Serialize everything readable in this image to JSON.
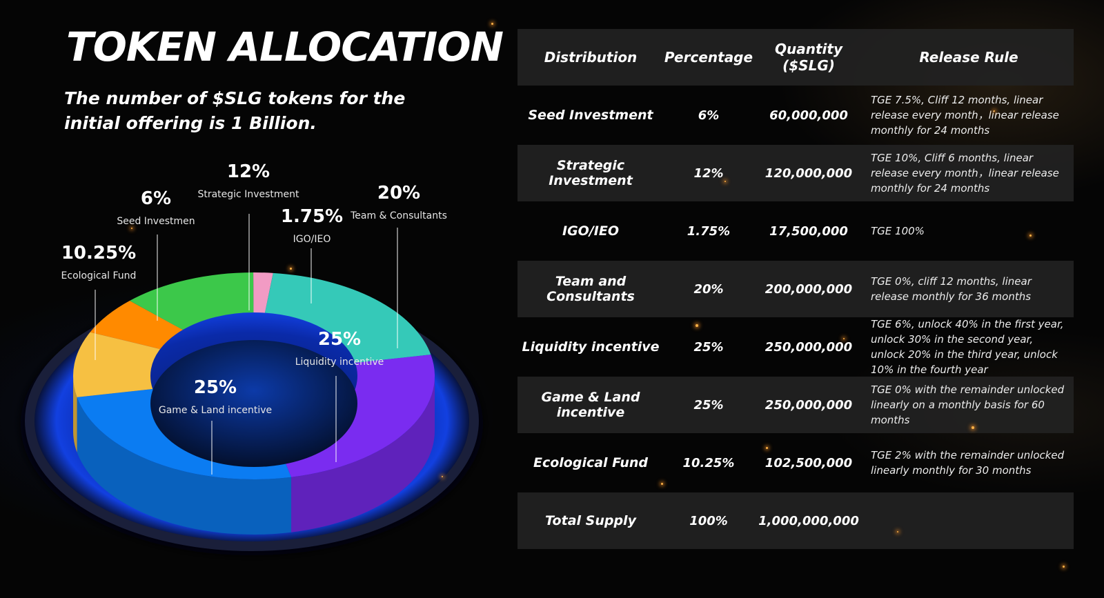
{
  "title": "TOKEN ALLOCATION",
  "subtitle": "The number of $SLG  tokens for the initial offering is 1 Billion.",
  "chart_data": {
    "type": "pie",
    "style": "3d-donut",
    "labels": [
      "Seed Investmen",
      "Strategic Investment",
      "IGO/IEO",
      "Team & Consultants",
      "Liquidity incentive",
      "Game & Land incentive",
      "Ecological Fund"
    ],
    "values": [
      6,
      12,
      1.75,
      20,
      25,
      25,
      10.25
    ],
    "value_labels": [
      "6%",
      "12%",
      "1.75%",
      "20%",
      "25%",
      "25%",
      "10.25%"
    ],
    "colors": [
      "#ff8a00",
      "#3cc84a",
      "#f29bc4",
      "#35c9b8",
      "#7a2cf0",
      "#0b7cf2",
      "#f6c042"
    ]
  },
  "table": {
    "headers": [
      "Distribution",
      "Percentage",
      "Quantity ($SLG)",
      "Release Rule"
    ],
    "rows": [
      {
        "distribution": "Seed Investment",
        "percentage": "6%",
        "quantity": "60,000,000",
        "rule": "TGE 7.5%, Cliff 12 months, linear release every month，linear release monthly for 24 months"
      },
      {
        "distribution": "Strategic Investment",
        "percentage": "12%",
        "quantity": "120,000,000",
        "rule": "TGE 10%, Cliff 6 months, linear release every month，linear release monthly for 24 months"
      },
      {
        "distribution": "IGO/IEO",
        "percentage": "1.75%",
        "quantity": "17,500,000",
        "rule": "TGE 100%"
      },
      {
        "distribution": "Team and Consultants",
        "percentage": "20%",
        "quantity": "200,000,000",
        "rule": "TGE 0%, cliff 12 months, linear release monthly for 36 months"
      },
      {
        "distribution": "Liquidity incentive",
        "percentage": "25%",
        "quantity": "250,000,000",
        "rule": "TGE 6%, unlock 40% in the first year, unlock 30% in the second year, unlock 20% in the third year, unlock 10% in the fourth year"
      },
      {
        "distribution": "Game & Land incentive",
        "percentage": "25%",
        "quantity": "250,000,000",
        "rule": "TGE 0% with the remainder unlocked linearly on a monthly basis for 60 months"
      },
      {
        "distribution": "Ecological Fund",
        "percentage": "10.25%",
        "quantity": "102,500,000",
        "rule": "TGE 2% with the remainder unlocked linearly monthly for 30 months"
      },
      {
        "distribution": "Total Supply",
        "percentage": "100%",
        "quantity": "1,000,000,000",
        "rule": ""
      }
    ]
  }
}
